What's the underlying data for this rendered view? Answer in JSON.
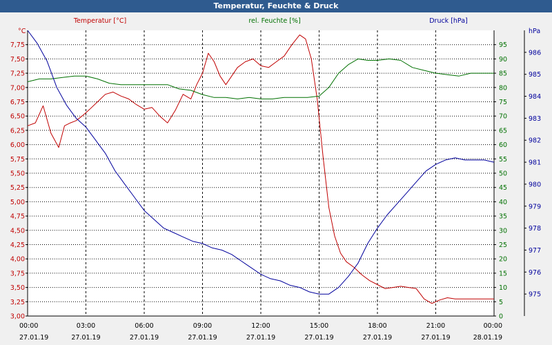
{
  "window": {
    "title": "Temperatur, Feuchte & Druck"
  },
  "colors": {
    "temperature": "#c00000",
    "humidity": "#007000",
    "pressure": "#00009c",
    "grid": "#000000",
    "plot_bg": "#ffffff"
  },
  "chart_data": {
    "type": "line",
    "title": "Temperatur, Feuchte & Druck",
    "x_ticks": [
      {
        "time": "00:00",
        "date": "27.01.19"
      },
      {
        "time": "03:00",
        "date": "27.01.19"
      },
      {
        "time": "06:00",
        "date": "27.01.19"
      },
      {
        "time": "09:00",
        "date": "27.01.19"
      },
      {
        "time": "12:00",
        "date": "27.01.19"
      },
      {
        "time": "15:00",
        "date": "27.01.19"
      },
      {
        "time": "18:00",
        "date": "27.01.19"
      },
      {
        "time": "21:00",
        "date": "27.01.19"
      },
      {
        "time": "00:00",
        "date": "28.01.19"
      }
    ],
    "xlim_hours": [
      0,
      24
    ],
    "axes": {
      "temperature": {
        "label": "Temperatur [°C]",
        "unit": "°C",
        "ylim": [
          3.0,
          8.0
        ],
        "ticks": [
          "3,00",
          "3,25",
          "3,50",
          "3,75",
          "4,00",
          "4,25",
          "4,50",
          "4,75",
          "5,00",
          "5,25",
          "5,50",
          "5,75",
          "6,00",
          "6,25",
          "6,50",
          "6,75",
          "7,00",
          "7,25",
          "7,50",
          "7,75"
        ]
      },
      "humidity": {
        "label": "rel. Feuchte [%]",
        "unit": "%",
        "ylim": [
          0,
          100
        ],
        "ticks": [
          "0",
          "5",
          "10",
          "15",
          "20",
          "25",
          "30",
          "35",
          "40",
          "45",
          "50",
          "55",
          "60",
          "65",
          "70",
          "75",
          "80",
          "85",
          "90",
          "95"
        ]
      },
      "pressure": {
        "label": "Druck [hPa]",
        "unit": "hPa",
        "ylim": [
          974,
          987
        ],
        "ticks": [
          "975",
          "976",
          "977",
          "978",
          "979",
          "980",
          "981",
          "982",
          "983",
          "984",
          "985",
          "986"
        ]
      }
    },
    "series": [
      {
        "name": "Temperatur [°C]",
        "axis": "temperature",
        "color": "#c00000",
        "x": [
          0,
          0.4,
          0.8,
          1.2,
          1.6,
          1.9,
          2.2,
          2.5,
          2.8,
          3.2,
          3.6,
          4.0,
          4.4,
          4.8,
          5.2,
          5.6,
          6.0,
          6.4,
          6.8,
          7.2,
          7.6,
          8.0,
          8.4,
          8.7,
          9.0,
          9.3,
          9.6,
          9.9,
          10.2,
          10.5,
          10.8,
          11.2,
          11.6,
          12.0,
          12.4,
          12.8,
          13.2,
          13.6,
          14.0,
          14.3,
          14.6,
          14.9,
          15.2,
          15.5,
          15.8,
          16.1,
          16.4,
          16.8,
          17.2,
          17.6,
          18.0,
          18.4,
          18.8,
          19.2,
          19.6,
          20.0,
          20.4,
          20.8,
          21.2,
          21.6,
          22.0,
          22.4,
          22.8,
          23.2,
          23.6,
          24.0
        ],
        "values": [
          6.33,
          6.38,
          6.68,
          6.2,
          5.95,
          6.33,
          6.38,
          6.42,
          6.5,
          6.62,
          6.75,
          6.88,
          6.92,
          6.85,
          6.8,
          6.7,
          6.62,
          6.65,
          6.5,
          6.38,
          6.6,
          6.88,
          6.8,
          7.05,
          7.25,
          7.6,
          7.45,
          7.2,
          7.05,
          7.2,
          7.35,
          7.45,
          7.5,
          7.38,
          7.35,
          7.45,
          7.55,
          7.75,
          7.92,
          7.85,
          7.5,
          6.8,
          5.8,
          4.9,
          4.4,
          4.1,
          3.95,
          3.85,
          3.72,
          3.62,
          3.55,
          3.48,
          3.5,
          3.52,
          3.5,
          3.48,
          3.3,
          3.22,
          3.28,
          3.32,
          3.3,
          3.3,
          3.3,
          3.3,
          3.3,
          3.3
        ]
      },
      {
        "name": "rel. Feuchte [%]",
        "axis": "humidity",
        "color": "#007000",
        "x": [
          0,
          0.6,
          1.2,
          1.8,
          2.4,
          3.0,
          3.6,
          4.2,
          4.8,
          5.4,
          6.0,
          6.6,
          7.2,
          7.8,
          8.4,
          9.0,
          9.6,
          10.2,
          10.8,
          11.4,
          12.0,
          12.6,
          13.2,
          13.8,
          14.4,
          15.0,
          15.5,
          16.0,
          16.5,
          17.0,
          17.5,
          18.0,
          18.6,
          19.2,
          19.8,
          20.4,
          21.0,
          21.6,
          22.2,
          22.8,
          23.4,
          24.0
        ],
        "values": [
          82,
          83,
          83,
          83.5,
          84,
          84,
          83,
          81.5,
          81,
          81,
          81,
          81,
          81,
          79.5,
          79,
          77.5,
          76.5,
          76.5,
          76,
          76.5,
          76,
          76,
          76.5,
          76.5,
          76.5,
          77,
          80,
          85,
          88,
          90,
          89.5,
          89.5,
          90,
          89.5,
          87,
          86,
          85,
          84.5,
          84,
          85,
          85,
          85
        ]
      },
      {
        "name": "Druck [hPa]",
        "axis": "pressure",
        "color": "#00009c",
        "x": [
          0,
          0.5,
          1.0,
          1.5,
          2.0,
          2.5,
          3.0,
          3.5,
          4.0,
          4.5,
          5.0,
          5.5,
          6.0,
          6.5,
          7.0,
          7.5,
          8.0,
          8.5,
          9.0,
          9.5,
          10.0,
          10.5,
          11.0,
          11.5,
          12.0,
          12.5,
          13.0,
          13.5,
          14.0,
          14.5,
          15.0,
          15.5,
          16.0,
          16.5,
          17.0,
          17.5,
          18.0,
          18.5,
          19.0,
          19.5,
          20.0,
          20.5,
          21.0,
          21.5,
          22.0,
          22.5,
          23.0,
          23.5,
          24.0
        ],
        "values": [
          987,
          986.4,
          985.6,
          984.4,
          983.6,
          983,
          982.6,
          982,
          981.4,
          980.6,
          980,
          979.4,
          978.8,
          978.4,
          978,
          977.8,
          977.6,
          977.4,
          977.3,
          977.1,
          977,
          976.8,
          976.5,
          976.2,
          975.9,
          975.7,
          975.6,
          975.4,
          975.3,
          975.1,
          975,
          975,
          975.3,
          975.8,
          976.4,
          977.3,
          978,
          978.6,
          979.1,
          979.6,
          980.1,
          980.6,
          980.9,
          981.1,
          981.2,
          981.1,
          981.1,
          981.1,
          981.0
        ]
      }
    ]
  }
}
